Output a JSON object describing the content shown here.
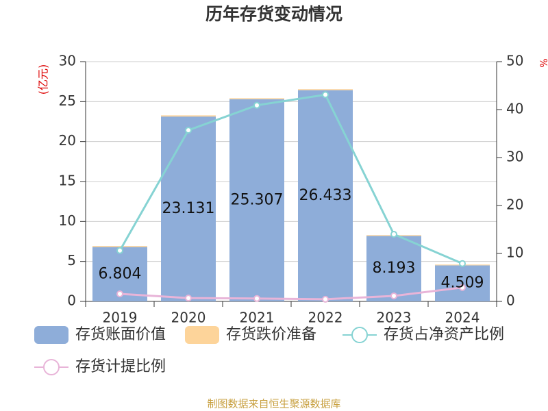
{
  "chart_data": {
    "type": "bar",
    "title": "历年存货变动情况",
    "y_label": "(亿元)",
    "y2_label": "%",
    "source": "制图数据来自恒生聚源数据库",
    "categories": [
      "2019",
      "2020",
      "2021",
      "2022",
      "2023",
      "2024"
    ],
    "ylim": [
      0,
      30
    ],
    "yticks": [
      0,
      5,
      10,
      15,
      20,
      25,
      30
    ],
    "y2lim": [
      0,
      50
    ],
    "y2ticks": [
      0,
      10,
      20,
      30,
      40,
      50
    ],
    "grid": true,
    "series": [
      {
        "name": "存货账面价值",
        "type": "bar",
        "color": "#8eadd9",
        "values": [
          6.804,
          23.131,
          25.307,
          26.433,
          8.193,
          4.509
        ],
        "labels": true
      },
      {
        "name": "存货跌价准备",
        "type": "bar",
        "color": "#fdd49a",
        "values": [
          0.13,
          0.15,
          0.12,
          0.12,
          0.1,
          0.1
        ]
      },
      {
        "name": "存货占净资产比例",
        "type": "line",
        "axis": "y2",
        "color": "#86d3d3",
        "values": [
          10.6,
          35.7,
          40.9,
          43.1,
          14.0,
          7.9
        ]
      },
      {
        "name": "存货计提比例",
        "type": "line",
        "axis": "y2",
        "color": "#e8b4d8",
        "values": [
          1.57,
          0.7,
          0.6,
          0.45,
          1.15,
          2.9
        ]
      }
    ]
  }
}
